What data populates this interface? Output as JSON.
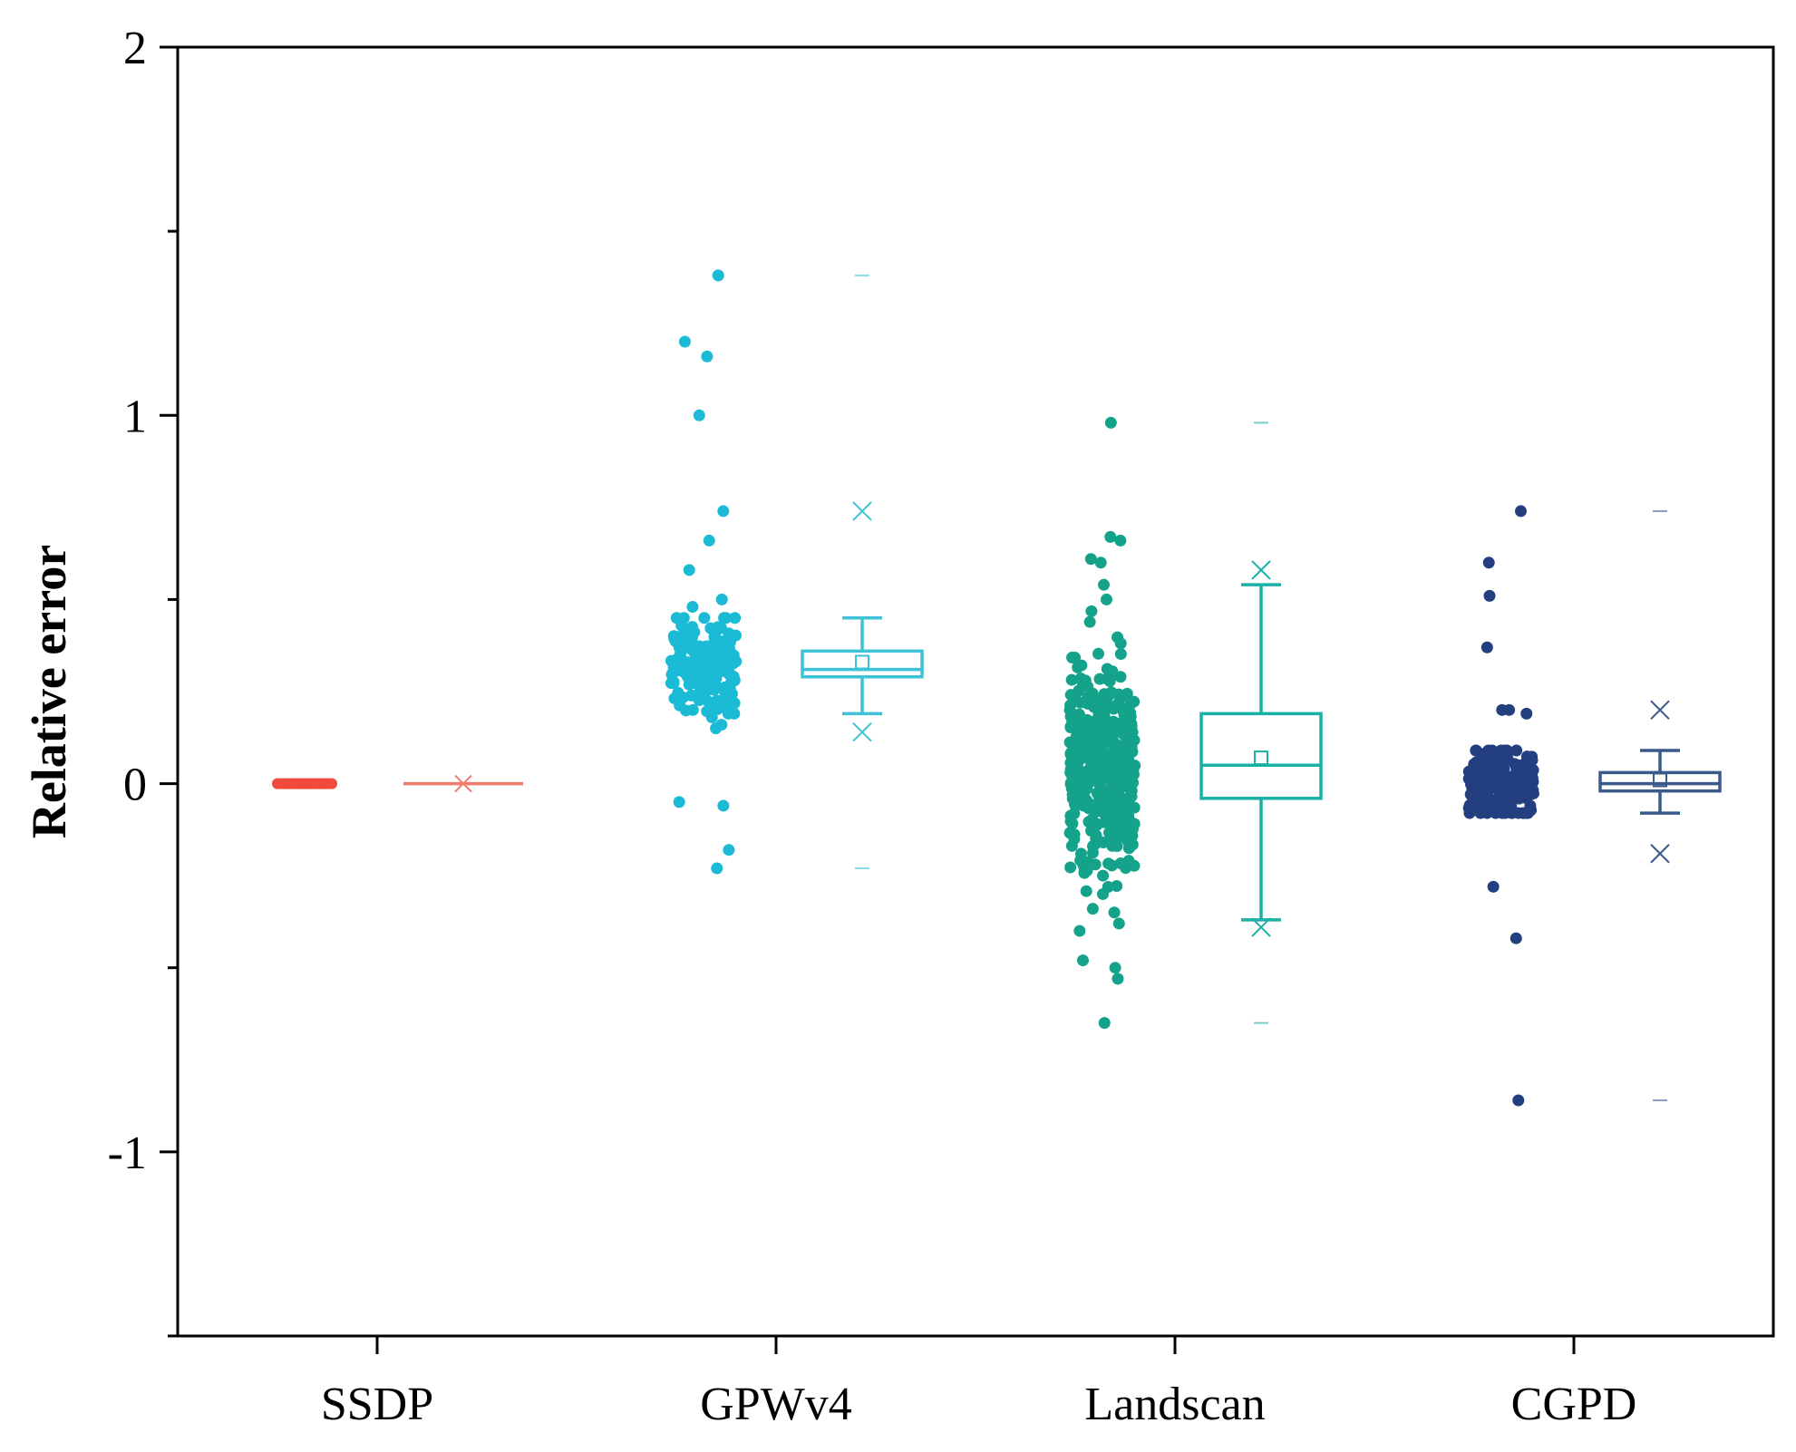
{
  "chart_data": {
    "type": "box+scatter",
    "title": "",
    "xlabel": "",
    "ylabel": "Relative error",
    "ylim": [
      -1.5,
      2.0
    ],
    "yticks": [
      -1,
      0,
      1,
      2
    ],
    "yticks_minor": [
      -1.5,
      -0.5,
      0.5,
      1.5
    ],
    "categories": [
      "SSDP",
      "GPWv4",
      "Landscan",
      "CGPD"
    ],
    "grid": false,
    "series": [
      {
        "name": "SSDP",
        "color": "#f04a3c",
        "box_color": "#f07b6b",
        "n_points": 40,
        "scatter_center": 0.0,
        "scatter_spread": 0.0,
        "outlier_points": [],
        "box": {
          "q1": 0.0,
          "median": 0.0,
          "q3": 0.0,
          "whisker_low": 0.0,
          "whisker_high": 0.0,
          "mean": 0.0,
          "p1": 0.0,
          "p99": 0.0,
          "min": 0.0,
          "max": 0.0
        }
      },
      {
        "name": "GPWv4",
        "color": "#1bbbd6",
        "box_color": "#3ec3d6",
        "n_points": 180,
        "scatter_center": 0.32,
        "scatter_spread": 0.07,
        "outlier_points": [
          1.38,
          1.2,
          1.16,
          1.0,
          0.74,
          0.66,
          0.58,
          0.5,
          0.48,
          0.45,
          0.18,
          0.16,
          0.15,
          -0.05,
          -0.06,
          -0.18,
          -0.23
        ],
        "box": {
          "q1": 0.29,
          "median": 0.31,
          "q3": 0.36,
          "whisker_low": 0.19,
          "whisker_high": 0.45,
          "mean": 0.33,
          "p1": 0.14,
          "p99": 0.74,
          "min": -0.23,
          "max": 1.38
        }
      },
      {
        "name": "Landscan",
        "color": "#14a38a",
        "box_color": "#19b0a6",
        "n_points": 420,
        "scatter_center": 0.05,
        "scatter_spread": 0.13,
        "outlier_points": [
          0.98,
          0.67,
          0.66,
          0.61,
          0.6,
          0.54,
          0.5,
          -0.3,
          -0.35,
          -0.38,
          -0.4,
          -0.48,
          -0.5,
          -0.53,
          -0.65
        ],
        "box": {
          "q1": -0.04,
          "median": 0.05,
          "q3": 0.19,
          "whisker_low": -0.37,
          "whisker_high": 0.54,
          "mean": 0.07,
          "p1": -0.39,
          "p99": 0.58,
          "min": -0.65,
          "max": 0.98
        }
      },
      {
        "name": "CGPD",
        "color": "#233f80",
        "box_color": "#3a5a8c",
        "n_points": 200,
        "scatter_center": 0.0,
        "scatter_spread": 0.05,
        "outlier_points": [
          0.74,
          0.6,
          0.51,
          0.37,
          0.2,
          0.2,
          0.19,
          -0.28,
          -0.42,
          -0.86
        ],
        "box": {
          "q1": -0.02,
          "median": 0.0,
          "q3": 0.03,
          "whisker_low": -0.08,
          "whisker_high": 0.09,
          "mean": 0.01,
          "p1": -0.19,
          "p99": 0.2,
          "min": -0.86,
          "max": 0.74
        }
      }
    ]
  }
}
